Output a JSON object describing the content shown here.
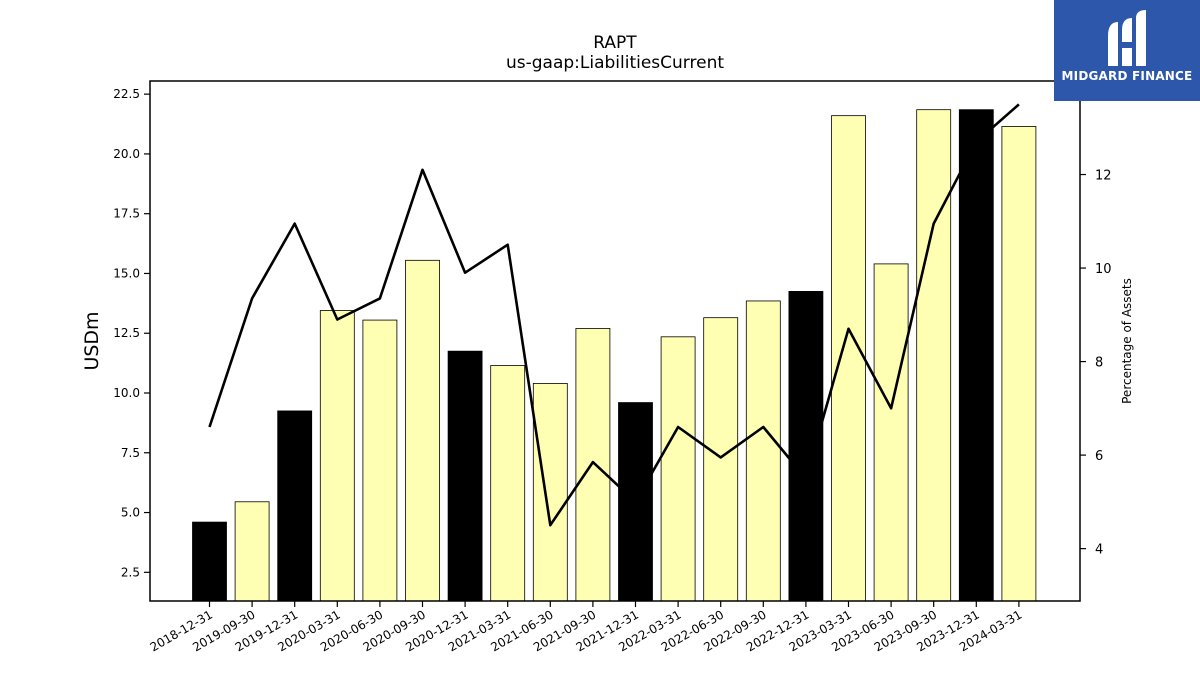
{
  "chart_data": {
    "type": "bar",
    "title": "RAPT",
    "subtitle": "us-gaap:LiabilitiesCurrent",
    "ylabel": "USDm",
    "y2label": "Percentage of Assets",
    "categories": [
      "2018-12-31",
      "2019-09-30",
      "2019-12-31",
      "2020-03-31",
      "2020-06-30",
      "2020-09-30",
      "2020-12-31",
      "2021-03-31",
      "2021-06-30",
      "2021-09-30",
      "2021-12-31",
      "2022-03-31",
      "2022-06-30",
      "2022-09-30",
      "2022-12-31",
      "2023-03-31",
      "2023-06-30",
      "2023-09-30",
      "2023-12-31",
      "2024-03-31"
    ],
    "series": [
      {
        "type": "bar",
        "axis": "left",
        "values": [
          4.6,
          5.45,
          9.25,
          13.45,
          13.05,
          15.55,
          11.75,
          11.15,
          10.4,
          12.7,
          9.6,
          12.35,
          13.15,
          13.85,
          14.25,
          21.6,
          15.4,
          21.85,
          21.85,
          21.15
        ],
        "colors": [
          "#000000",
          "#ffffb3",
          "#000000",
          "#ffffb3",
          "#ffffb3",
          "#ffffb3",
          "#000000",
          "#ffffb3",
          "#ffffb3",
          "#ffffb3",
          "#000000",
          "#ffffb3",
          "#ffffb3",
          "#ffffb3",
          "#000000",
          "#ffffb3",
          "#ffffb3",
          "#ffffb3",
          "#000000",
          "#ffffb3"
        ]
      },
      {
        "type": "line",
        "axis": "right",
        "values": [
          6.6,
          9.35,
          10.95,
          8.9,
          9.35,
          12.1,
          9.9,
          10.5,
          4.5,
          5.85,
          5.0,
          6.6,
          5.95,
          6.6,
          5.5,
          8.7,
          7.0,
          10.95,
          12.7,
          13.5
        ]
      }
    ],
    "ylim": [
      1.3,
      23.05
    ],
    "y2lim": [
      2.88,
      14.0
    ],
    "yticks": [
      "2.5",
      "5.0",
      "7.5",
      "10.0",
      "12.5",
      "15.0",
      "17.5",
      "20.0",
      "22.5"
    ],
    "y2ticks": [
      "4",
      "6",
      "8",
      "10",
      "12"
    ],
    "grid": false,
    "legend": "none"
  },
  "logo": {
    "text": "MIDGARD FINANCE"
  },
  "colors": {
    "bar_highlight": "#000000",
    "bar_default": "#ffffb3",
    "line": "#000000",
    "logo_bg": "#2c57ab"
  }
}
